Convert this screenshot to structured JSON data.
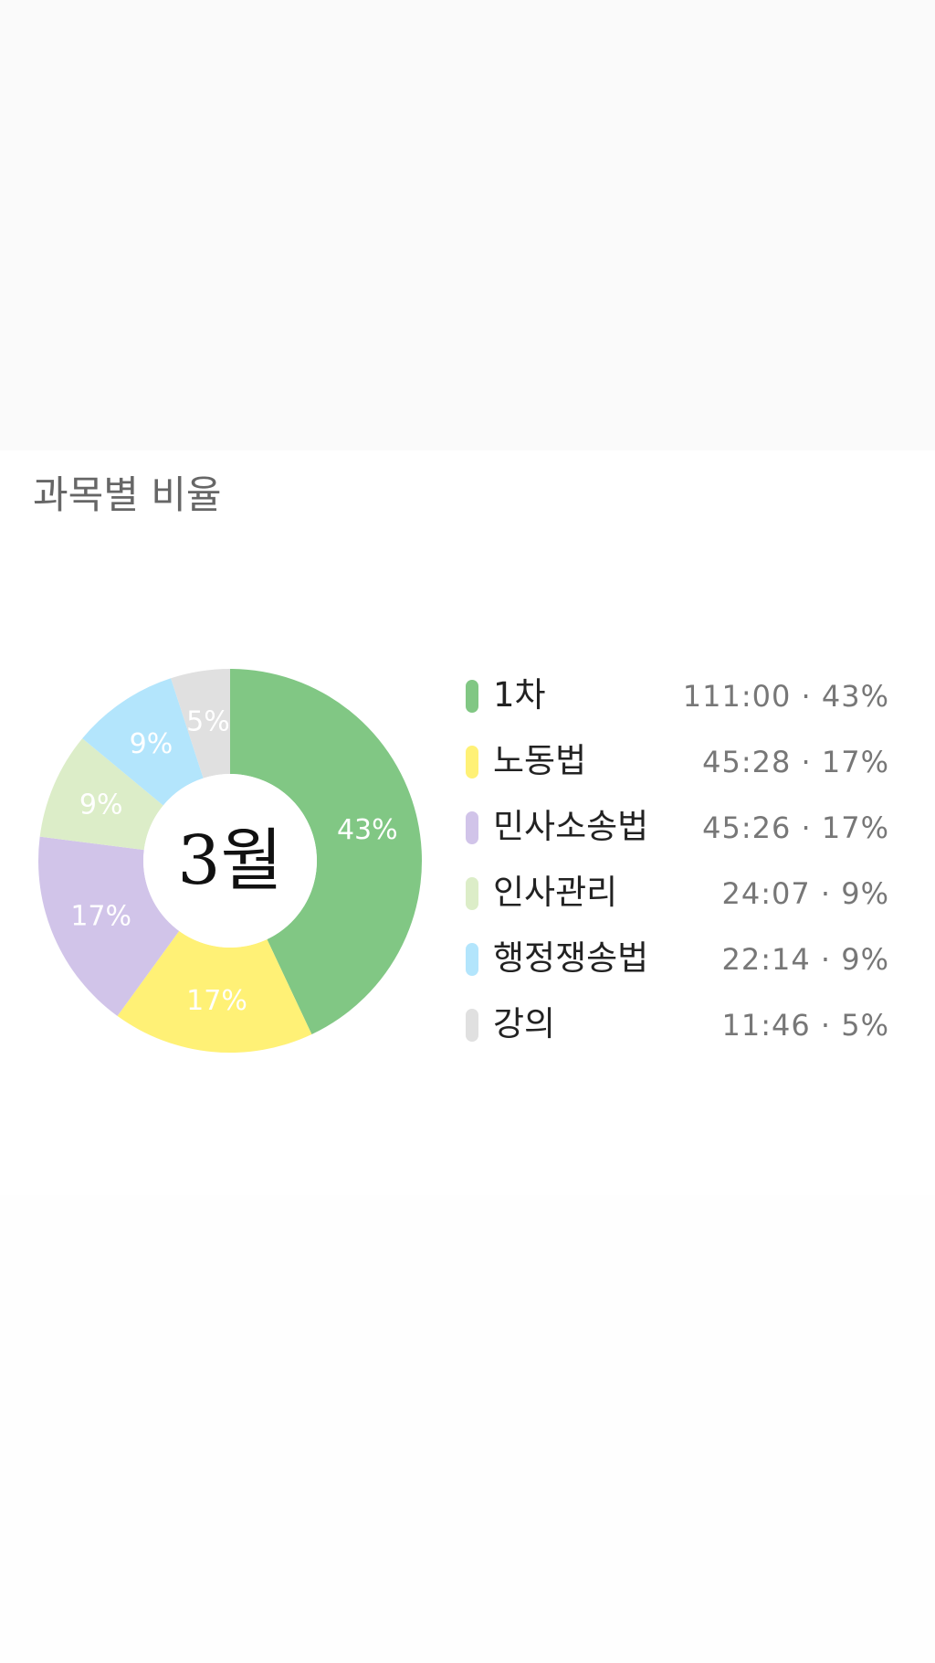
{
  "section": {
    "title": "과목별 비율"
  },
  "chart_data": {
    "type": "pie",
    "variant": "donut",
    "center_label": "3월",
    "categories": [
      "1차",
      "노동법",
      "민사소송법",
      "인사관리",
      "행정쟁송법",
      "강의"
    ],
    "values": [
      43,
      17,
      17,
      9,
      9,
      5
    ],
    "slice_labels": [
      "43%",
      "17%",
      "17%",
      "9%",
      "9%",
      "5%"
    ],
    "colors": [
      "#81c784",
      "#fff176",
      "#d1c4e9",
      "#dcedc8",
      "#b3e5fc",
      "#e0e0e0"
    ],
    "legend_placement": "right"
  },
  "legend": {
    "items": [
      {
        "name": "1차",
        "time": "111:00",
        "percent": "43%",
        "value": "111:00 · 43%",
        "color": "#81c784"
      },
      {
        "name": "노동법",
        "time": "45:28",
        "percent": "17%",
        "value": "45:28 · 17%",
        "color": "#fff176"
      },
      {
        "name": "민사소송법",
        "time": "45:26",
        "percent": "17%",
        "value": "45:26 · 17%",
        "color": "#d1c4e9"
      },
      {
        "name": "인사관리",
        "time": "24:07",
        "percent": "9%",
        "value": "24:07 · 9%",
        "color": "#dcedc8"
      },
      {
        "name": "행정쟁송법",
        "time": "22:14",
        "percent": "9%",
        "value": "22:14 · 9%",
        "color": "#b3e5fc"
      },
      {
        "name": "강의",
        "time": "11:46",
        "percent": "5%",
        "value": "11:46 · 5%",
        "color": "#e0e0e0"
      }
    ]
  }
}
